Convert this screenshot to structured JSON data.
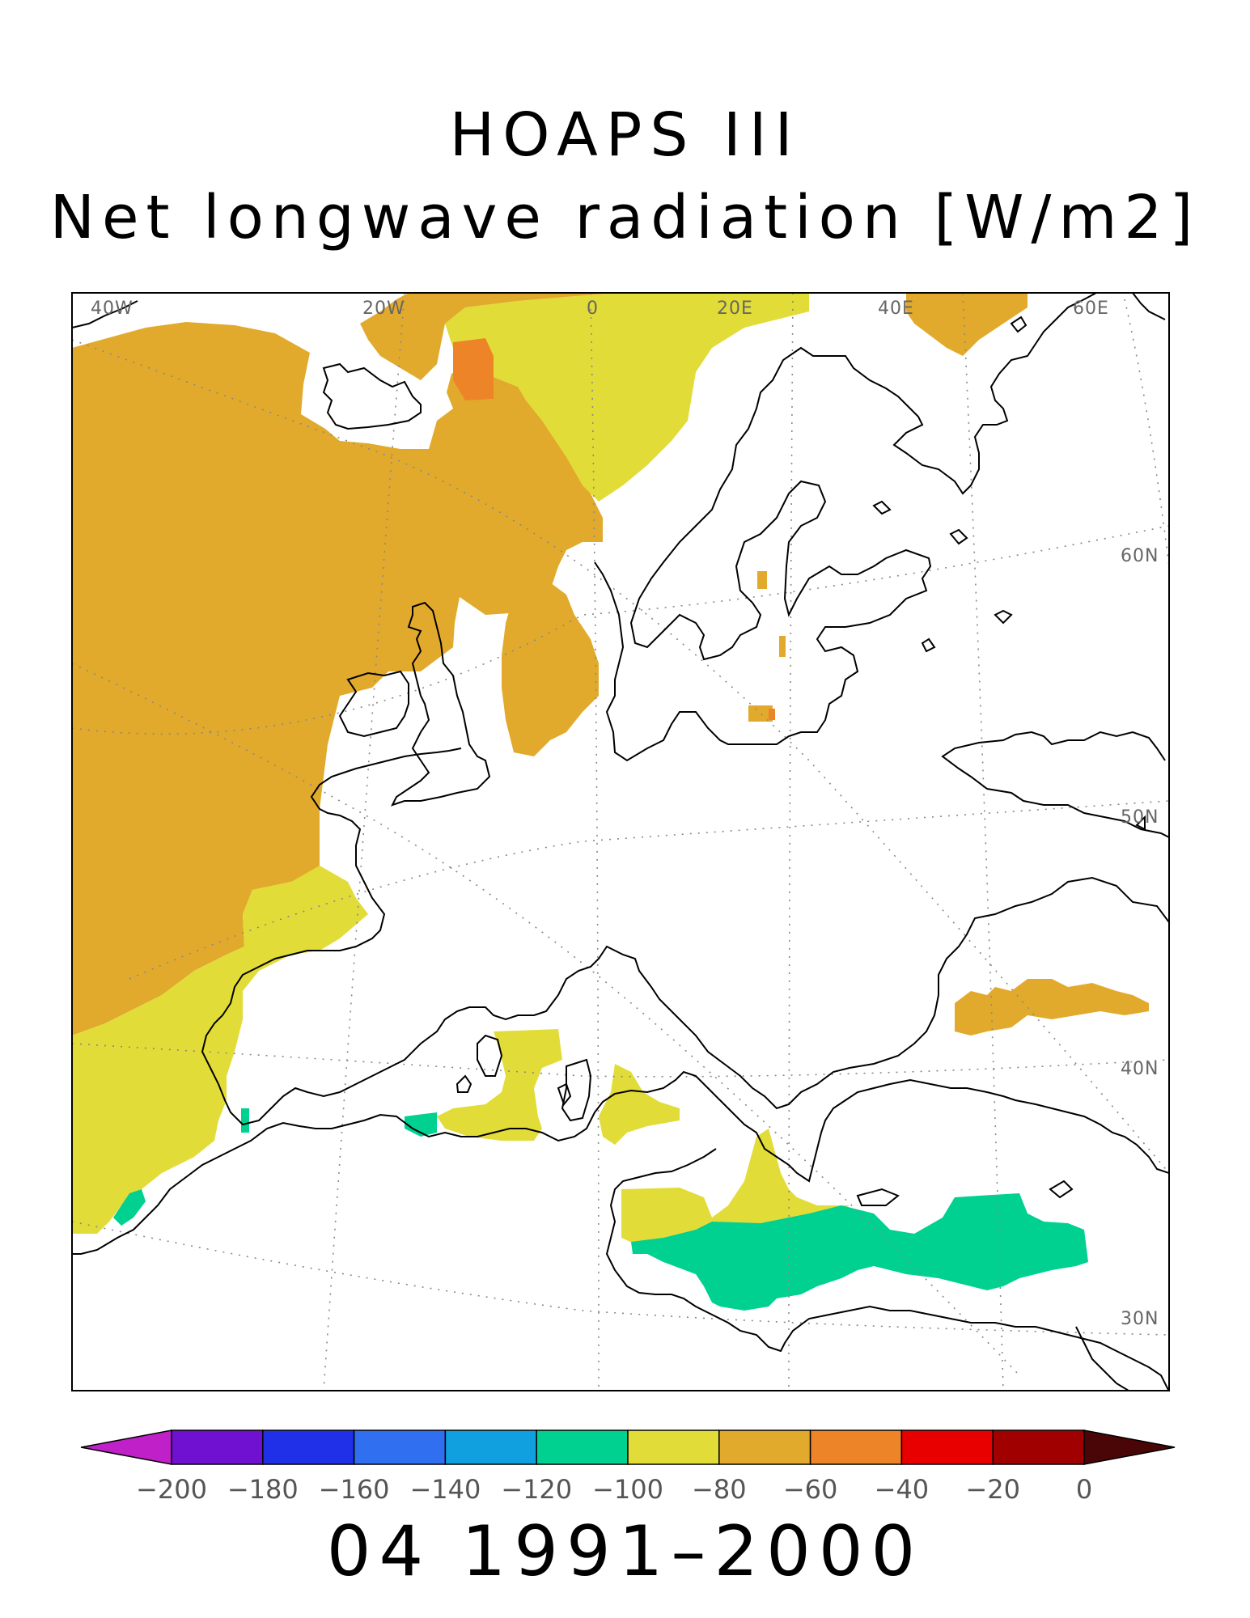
{
  "title": "HOAPS III",
  "subtitle": "Net longwave radiation [W/m2]",
  "period": "04 1991–2000",
  "map": {
    "lon_labels": [
      "40W",
      "20W",
      "0",
      "20E",
      "40E",
      "60E"
    ],
    "lat_labels": [
      "60N",
      "50N",
      "40N",
      "30N"
    ]
  },
  "colorbar": {
    "ticks": [
      "−200",
      "−180",
      "−160",
      "−140",
      "−120",
      "−100",
      "−80",
      "−60",
      "−40",
      "−20",
      "0"
    ],
    "low_extend_color": "#c020c8",
    "high_extend_color": "#4a0606",
    "bins": [
      {
        "from": -200,
        "to": -180,
        "color": "#7010d0"
      },
      {
        "from": -180,
        "to": -160,
        "color": "#2030e8"
      },
      {
        "from": -160,
        "to": -140,
        "color": "#3070f0"
      },
      {
        "from": -140,
        "to": -120,
        "color": "#10a0e0"
      },
      {
        "from": -120,
        "to": -100,
        "color": "#00d090"
      },
      {
        "from": -100,
        "to": -80,
        "color": "#e2dc38"
      },
      {
        "from": -80,
        "to": -60,
        "color": "#e2aa2c"
      },
      {
        "from": -60,
        "to": -40,
        "color": "#ee8428"
      },
      {
        "from": -40,
        "to": -20,
        "color": "#e80000"
      },
      {
        "from": -20,
        "to": 0,
        "color": "#a00000"
      }
    ]
  }
}
